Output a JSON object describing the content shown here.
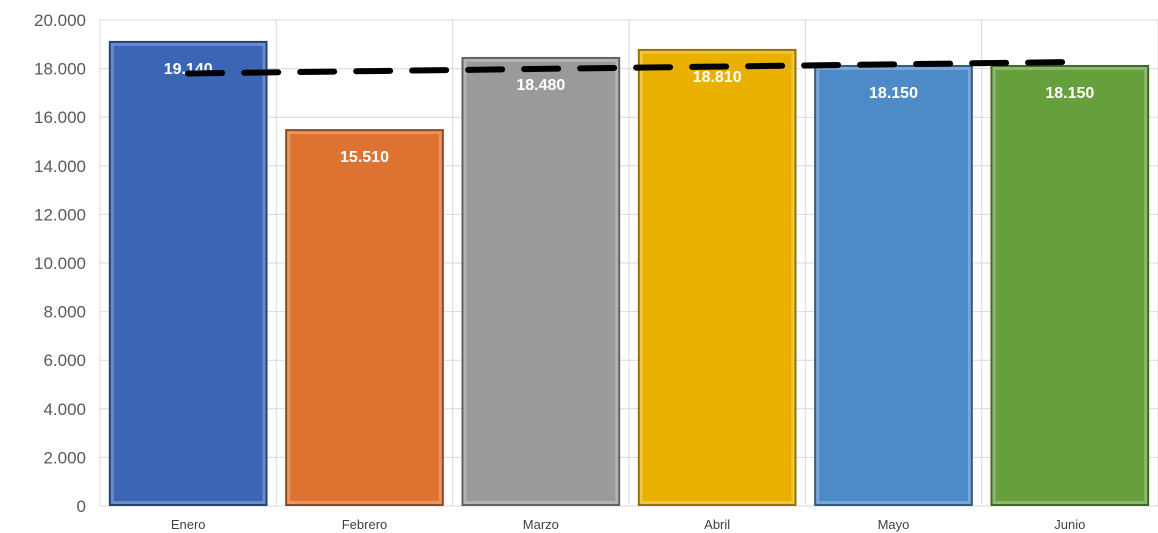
{
  "chart_data": {
    "type": "bar",
    "title": "",
    "xlabel": "",
    "ylabel": "",
    "categories": [
      "Enero",
      "Febrero",
      "Marzo",
      "Abril",
      "Mayo",
      "Junio"
    ],
    "values": [
      19140,
      15510,
      18480,
      18810,
      18150,
      18150
    ],
    "value_labels": [
      "19.140",
      "15.510",
      "18.480",
      "18.810",
      "18.150",
      "18.150"
    ],
    "colors": [
      "#3a66b5",
      "#de7230",
      "#9a9a9a",
      "#eab000",
      "#4d8bc8",
      "#66a03c"
    ],
    "ylim": [
      0,
      20000
    ],
    "yticks": [
      0,
      2000,
      4000,
      6000,
      8000,
      10000,
      12000,
      14000,
      16000,
      18000,
      20000
    ],
    "ytick_labels": [
      "0",
      "2.000",
      "4.000",
      "6.000",
      "8.000",
      "10.000",
      "12.000",
      "14.000",
      "16.000",
      "18.000",
      "20.000"
    ],
    "grid": true,
    "legend": "none",
    "trendline": {
      "type": "linear",
      "style": "dashed",
      "color": "#000000",
      "start": 17800,
      "end": 18270
    }
  }
}
